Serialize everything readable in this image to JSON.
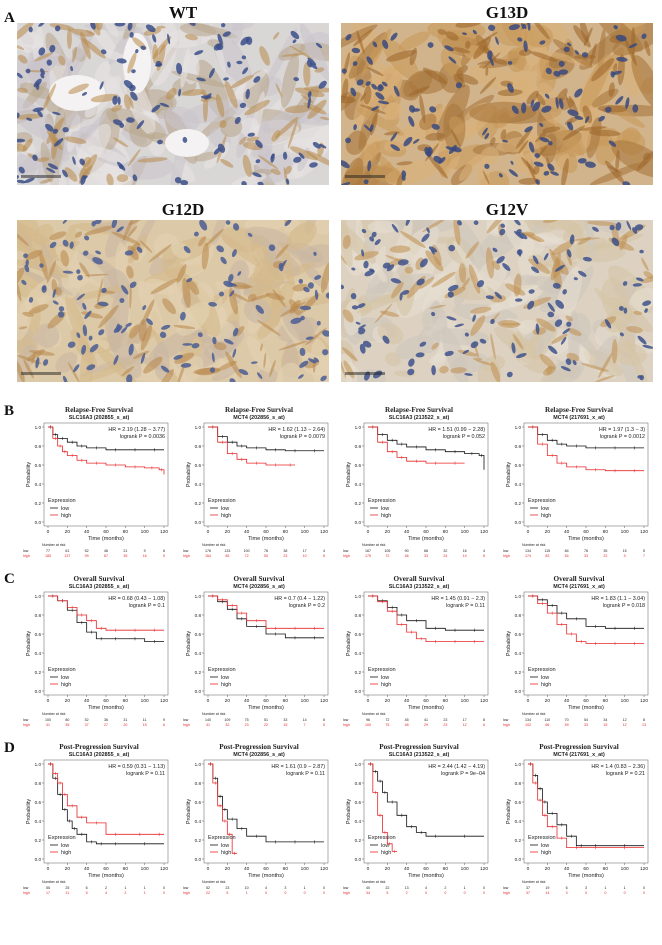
{
  "panels": {
    "A": "A",
    "B": "B",
    "C": "C",
    "D": "D"
  },
  "ihc": [
    {
      "label": "WT"
    },
    {
      "label": "G13D"
    },
    {
      "label": "G12D"
    },
    {
      "label": "G12V"
    }
  ],
  "km_common": {
    "ylabel": "Probability",
    "xlabel": "Time (months)",
    "legend_title": "Expression",
    "legend_low": "low",
    "legend_high": "high",
    "number_at_risk": "Number at risk",
    "row_low": "low",
    "row_high": "high",
    "yticks": [
      "0.0",
      "0.2",
      "0.4",
      "0.6",
      "0.8",
      "1.0"
    ],
    "colors": {
      "low": "#111111",
      "high": "#e8282a"
    }
  },
  "chart_data": [
    {
      "type": "line",
      "row": "B",
      "title": "Relapse-Free Survival",
      "subtitle": "SLC16A3 (202855_s_at)",
      "hr": "HR = 2.19 (1.28 − 3.77)",
      "logrank": "logrank P = 0.0036",
      "xticks": [
        "0",
        "20",
        "40",
        "60",
        "80",
        "100",
        "120"
      ],
      "xlim": [
        0,
        120
      ],
      "ylim": [
        0,
        1
      ],
      "low": {
        "x": [
          0,
          5,
          10,
          20,
          30,
          40,
          60,
          80,
          100,
          120
        ],
        "y": [
          1,
          0.92,
          0.88,
          0.84,
          0.8,
          0.78,
          0.76,
          0.76,
          0.76,
          0.76
        ]
      },
      "high": {
        "x": [
          0,
          5,
          10,
          15,
          20,
          30,
          40,
          60,
          80,
          100,
          115,
          120
        ],
        "y": [
          1,
          0.88,
          0.8,
          0.74,
          0.7,
          0.65,
          0.62,
          0.6,
          0.58,
          0.57,
          0.55,
          0.5
        ]
      },
      "risk_low": [
        "77",
        "61",
        "52",
        "46",
        "21",
        "9",
        "6"
      ],
      "risk_high": [
        "185",
        "137",
        "99",
        "67",
        "35",
        "16",
        "5"
      ]
    },
    {
      "type": "line",
      "row": "B",
      "title": "Relapse-Free Survival",
      "subtitle": "MCT4 (202856_s_at)",
      "hr": "HR = 1.62 (1.13 − 2.64)",
      "logrank": "logrank P = 0.0079",
      "xticks": [
        "0",
        "20",
        "40",
        "60",
        "80",
        "100",
        "120"
      ],
      "xlim": [
        0,
        120
      ],
      "ylim": [
        0,
        1
      ],
      "low": {
        "x": [
          0,
          10,
          20,
          30,
          40,
          60,
          80,
          100,
          120
        ],
        "y": [
          1,
          0.9,
          0.84,
          0.8,
          0.78,
          0.76,
          0.75,
          0.75,
          0.75
        ]
      },
      "high": {
        "x": [
          0,
          10,
          20,
          30,
          40,
          60,
          80,
          90
        ],
        "y": [
          1,
          0.84,
          0.72,
          0.66,
          0.62,
          0.6,
          0.6,
          0.6
        ]
      },
      "risk_low": [
        "176",
        "133",
        "100",
        "76",
        "38",
        "17",
        "4"
      ],
      "risk_high": [
        "164",
        "85",
        "72",
        "50",
        "23",
        "10",
        "8"
      ]
    },
    {
      "type": "line",
      "row": "B",
      "title": "Relapse-Free Survival",
      "subtitle": "SLC16A3 (213522_s_at)",
      "hr": "HR = 1.51 (0.99 − 2.28)",
      "logrank": "logrank P = 0.052",
      "xticks": [
        "0",
        "20",
        "40",
        "60",
        "80",
        "100",
        "120"
      ],
      "xlim": [
        0,
        120
      ],
      "ylim": [
        0,
        1
      ],
      "low": {
        "x": [
          0,
          10,
          20,
          30,
          40,
          60,
          80,
          100,
          115,
          120
        ],
        "y": [
          1,
          0.92,
          0.86,
          0.82,
          0.79,
          0.76,
          0.74,
          0.72,
          0.7,
          0.55
        ]
      },
      "high": {
        "x": [
          0,
          10,
          20,
          30,
          40,
          60,
          80,
          100
        ],
        "y": [
          1,
          0.84,
          0.74,
          0.68,
          0.64,
          0.62,
          0.62,
          0.62
        ]
      },
      "risk_low": [
        "167",
        "105",
        "90",
        "68",
        "32",
        "16",
        "4"
      ],
      "risk_high": [
        "175",
        "72",
        "46",
        "33",
        "24",
        "14",
        "8"
      ]
    },
    {
      "type": "line",
      "row": "B",
      "title": "Relapse-Free Survival",
      "subtitle": "MCT4 (217691_x_at)",
      "hr": "HR = 1.97 (1.3 − 3)",
      "logrank": "logrank P = 0.0012",
      "xticks": [
        "0",
        "20",
        "40",
        "60",
        "80",
        "100",
        "120"
      ],
      "xlim": [
        0,
        120
      ],
      "ylim": [
        0,
        1
      ],
      "low": {
        "x": [
          0,
          10,
          20,
          30,
          40,
          60,
          80,
          100,
          120
        ],
        "y": [
          1,
          0.92,
          0.86,
          0.82,
          0.8,
          0.78,
          0.78,
          0.78,
          0.78
        ]
      },
      "high": {
        "x": [
          0,
          10,
          20,
          30,
          40,
          60,
          80,
          100,
          120
        ],
        "y": [
          1,
          0.82,
          0.7,
          0.62,
          0.58,
          0.55,
          0.54,
          0.54,
          0.54
        ]
      },
      "risk_low": [
        "134",
        "115",
        "84",
        "76",
        "35",
        "15",
        "5"
      ],
      "risk_high": [
        "174",
        "83",
        "54",
        "33",
        "22",
        "9",
        "7"
      ]
    },
    {
      "type": "line",
      "row": "C",
      "title": "Overall Survival",
      "subtitle": "SLC16A3 (202855_s_at)",
      "hr": "HR = 0.68 (0.43 − 1.08)",
      "logrank": "logrank P = 0.1",
      "xticks": [
        "0",
        "20",
        "40",
        "60",
        "80",
        "100",
        "120"
      ],
      "xlim": [
        0,
        120
      ],
      "ylim": [
        0,
        1
      ],
      "low": {
        "x": [
          0,
          10,
          20,
          30,
          40,
          50,
          60,
          80,
          100,
          120
        ],
        "y": [
          1,
          0.95,
          0.85,
          0.72,
          0.62,
          0.55,
          0.55,
          0.55,
          0.52,
          0.52
        ]
      },
      "high": {
        "x": [
          0,
          10,
          20,
          30,
          40,
          50,
          60,
          80,
          100,
          120
        ],
        "y": [
          1,
          0.95,
          0.88,
          0.8,
          0.74,
          0.66,
          0.64,
          0.64,
          0.64,
          0.64
        ]
      },
      "risk_low": [
        "100",
        "80",
        "52",
        "36",
        "31",
        "11",
        "9"
      ],
      "risk_high": [
        "41",
        "35",
        "37",
        "27",
        "20",
        "15",
        "6"
      ]
    },
    {
      "type": "line",
      "row": "C",
      "title": "Overall Survival",
      "subtitle": "MCT4 (202856_s_at)",
      "hr": "HR = 0.7 (0.4 − 1.22)",
      "logrank": "logrank P = 0.2",
      "xticks": [
        "0",
        "20",
        "40",
        "60",
        "80",
        "100",
        "120"
      ],
      "xlim": [
        0,
        120
      ],
      "ylim": [
        0,
        1
      ],
      "low": {
        "x": [
          0,
          10,
          20,
          30,
          40,
          60,
          80,
          100,
          120
        ],
        "y": [
          1,
          0.94,
          0.86,
          0.76,
          0.68,
          0.6,
          0.56,
          0.56,
          0.56
        ]
      },
      "high": {
        "x": [
          0,
          10,
          20,
          30,
          40,
          60,
          80,
          100,
          120
        ],
        "y": [
          1,
          0.96,
          0.9,
          0.82,
          0.74,
          0.66,
          0.66,
          0.66,
          0.66
        ]
      },
      "risk_low": [
        "140",
        "109",
        "75",
        "51",
        "33",
        "14",
        "6"
      ],
      "risk_high": [
        "41",
        "32",
        "23",
        "22",
        "15",
        "7",
        "5"
      ]
    },
    {
      "type": "line",
      "row": "C",
      "title": "Overall Survival",
      "subtitle": "SLC16A3 (213522_s_at)",
      "hr": "HR = 1.45 (0.91 − 2.3)",
      "logrank": "logrank P = 0.11",
      "xticks": [
        "0",
        "20",
        "40",
        "60",
        "80",
        "100",
        "120"
      ],
      "xlim": [
        0,
        120
      ],
      "ylim": [
        0,
        1
      ],
      "low": {
        "x": [
          0,
          10,
          20,
          30,
          40,
          60,
          80,
          100,
          120
        ],
        "y": [
          1,
          0.95,
          0.88,
          0.8,
          0.74,
          0.66,
          0.64,
          0.64,
          0.64
        ]
      },
      "high": {
        "x": [
          0,
          10,
          20,
          30,
          40,
          50,
          60,
          80,
          100,
          120
        ],
        "y": [
          1,
          0.94,
          0.84,
          0.7,
          0.62,
          0.55,
          0.52,
          0.52,
          0.52,
          0.52
        ]
      },
      "risk_low": [
        "96",
        "72",
        "45",
        "41",
        "23",
        "17",
        "8"
      ],
      "risk_high": [
        "100",
        "75",
        "48",
        "29",
        "23",
        "12",
        "6"
      ]
    },
    {
      "type": "line",
      "row": "C",
      "title": "Overall Survival",
      "subtitle": "MCT4 (217691_x_at)",
      "hr": "HR = 1.83 (1.1 − 3.04)",
      "logrank": "logrank P = 0.018",
      "xticks": [
        "0",
        "20",
        "40",
        "60",
        "80",
        "100",
        "120"
      ],
      "xlim": [
        0,
        120
      ],
      "ylim": [
        0,
        1
      ],
      "low": {
        "x": [
          0,
          10,
          20,
          30,
          40,
          60,
          80,
          100,
          120
        ],
        "y": [
          1,
          0.96,
          0.9,
          0.82,
          0.76,
          0.68,
          0.66,
          0.66,
          0.66
        ]
      },
      "high": {
        "x": [
          0,
          10,
          20,
          30,
          40,
          50,
          60,
          80,
          100,
          120
        ],
        "y": [
          1,
          0.92,
          0.82,
          0.7,
          0.6,
          0.52,
          0.5,
          0.5,
          0.5,
          0.5
        ]
      },
      "risk_low": [
        "134",
        "110",
        "70",
        "54",
        "34",
        "12",
        "8"
      ],
      "risk_high": [
        "102",
        "66",
        "59",
        "33",
        "15",
        "12",
        "13"
      ]
    },
    {
      "type": "line",
      "row": "D",
      "title": "Post-Progression Survival",
      "subtitle": "SLC16A3 (202855_s_at)",
      "hr": "HR = 0.59 (0.31 − 1.13)",
      "logrank": "logrank P = 0.11",
      "xticks": [
        "0",
        "20",
        "40",
        "60",
        "80",
        "100",
        "120"
      ],
      "xlim": [
        0,
        120
      ],
      "ylim": [
        0,
        1
      ],
      "low": {
        "x": [
          0,
          5,
          10,
          15,
          20,
          25,
          30,
          40,
          50,
          60,
          80,
          120
        ],
        "y": [
          1,
          0.85,
          0.68,
          0.52,
          0.4,
          0.32,
          0.26,
          0.18,
          0.16,
          0.16,
          0.16,
          0.16
        ]
      },
      "high": {
        "x": [
          0,
          5,
          10,
          15,
          20,
          30,
          40,
          60,
          80,
          110,
          120
        ],
        "y": [
          1,
          0.9,
          0.8,
          0.68,
          0.56,
          0.44,
          0.38,
          0.26,
          0.26,
          0.26,
          0.26
        ]
      },
      "risk_low": [
        "55",
        "25",
        "6",
        "2",
        "1",
        "1",
        "0"
      ],
      "risk_high": [
        "17",
        "11",
        "5",
        "4",
        "2",
        "1",
        "0"
      ]
    },
    {
      "type": "line",
      "row": "D",
      "title": "Post-Progression Survival",
      "subtitle": "MCT4 (202856_s_at)",
      "hr": "HR = 1.61 (0.9 − 2.87)",
      "logrank": "logrank P = 0.11",
      "xticks": [
        "0",
        "20",
        "40",
        "60",
        "80",
        "100",
        "120"
      ],
      "xlim": [
        0,
        120
      ],
      "ylim": [
        0,
        1
      ],
      "low": {
        "x": [
          0,
          5,
          10,
          15,
          20,
          30,
          40,
          60,
          80,
          100,
          120
        ],
        "y": [
          1,
          0.85,
          0.66,
          0.52,
          0.42,
          0.32,
          0.24,
          0.18,
          0.18,
          0.18,
          0.18
        ]
      },
      "high": {
        "x": [
          0,
          5,
          10,
          15,
          20,
          25,
          30
        ],
        "y": [
          1,
          0.8,
          0.56,
          0.4,
          0.26,
          0.06,
          0.06
        ]
      },
      "risk_low": [
        "52",
        "23",
        "10",
        "4",
        "3",
        "1",
        "0"
      ],
      "risk_high": [
        "22",
        "5",
        "1",
        "0",
        "0",
        "0",
        "0"
      ]
    },
    {
      "type": "line",
      "row": "D",
      "title": "Post-Progression Survival",
      "subtitle": "SLC16A3 (213522_s_at)",
      "hr": "HR = 2.44 (1.42 − 4.19)",
      "logrank": "logrank P = 9e−04",
      "xticks": [
        "0",
        "20",
        "40",
        "60",
        "80",
        "100",
        "120"
      ],
      "xlim": [
        0,
        120
      ],
      "ylim": [
        0,
        1
      ],
      "low": {
        "x": [
          0,
          5,
          10,
          15,
          20,
          30,
          40,
          50,
          60,
          80,
          120
        ],
        "y": [
          1,
          0.92,
          0.82,
          0.7,
          0.6,
          0.46,
          0.34,
          0.28,
          0.24,
          0.24,
          0.24
        ]
      },
      "high": {
        "x": [
          0,
          5,
          10,
          15,
          20,
          25,
          30
        ],
        "y": [
          1,
          0.7,
          0.46,
          0.28,
          0.16,
          0.08,
          0.08
        ]
      },
      "risk_low": [
        "40",
        "22",
        "13",
        "4",
        "2",
        "1",
        "0"
      ],
      "risk_high": [
        "34",
        "5",
        "2",
        "0",
        "0",
        "0",
        "0"
      ]
    },
    {
      "type": "line",
      "row": "D",
      "title": "Post-Progression Survival",
      "subtitle": "MCT4 (217691_x_at)",
      "hr": "HR = 1.4 (0.83 − 2.36)",
      "logrank": "logrank P = 0.21",
      "xticks": [
        "0",
        "20",
        "40",
        "60",
        "80",
        "100",
        "120"
      ],
      "xlim": [
        0,
        120
      ],
      "ylim": [
        0,
        1
      ],
      "low": {
        "x": [
          0,
          5,
          10,
          15,
          20,
          30,
          40,
          50,
          60,
          80,
          120
        ],
        "y": [
          1,
          0.88,
          0.74,
          0.6,
          0.48,
          0.36,
          0.24,
          0.14,
          0.14,
          0.14,
          0.14
        ]
      },
      "high": {
        "x": [
          0,
          5,
          10,
          15,
          20,
          30,
          40,
          60,
          80,
          120
        ],
        "y": [
          1,
          0.8,
          0.62,
          0.46,
          0.34,
          0.22,
          0.12,
          0.12,
          0.12,
          0.12
        ]
      },
      "risk_low": [
        "37",
        "19",
        "6",
        "3",
        "1",
        "1",
        "0"
      ],
      "risk_high": [
        "37",
        "14",
        "3",
        "0",
        "0",
        "0",
        "0"
      ]
    }
  ]
}
